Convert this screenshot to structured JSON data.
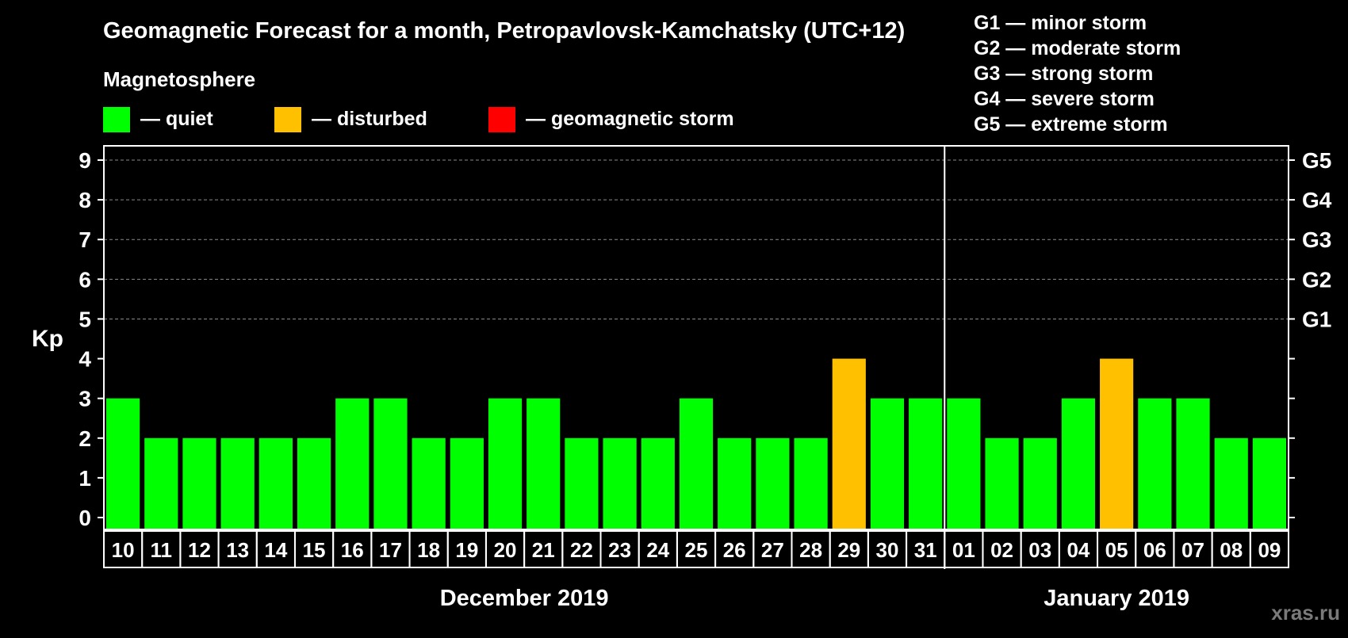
{
  "chart_data": {
    "type": "bar",
    "title": "Geomagnetic Forecast for a month, Petropavlovsk-Kamchatsky (UTC+12)",
    "subtitle": "Magnetosphere",
    "ylabel": "Kp",
    "ylim": [
      0,
      9
    ],
    "y_ticks": [
      "0",
      "1",
      "2",
      "3",
      "4",
      "5",
      "6",
      "7",
      "8",
      "9"
    ],
    "storm_scale": [
      {
        "level": "G1",
        "kp": 5
      },
      {
        "level": "G2",
        "kp": 6
      },
      {
        "level": "G3",
        "kp": 7
      },
      {
        "level": "G4",
        "kp": 8
      },
      {
        "level": "G5",
        "kp": 9
      }
    ],
    "legend": [
      {
        "label": "— quiet",
        "color": "#00ff00"
      },
      {
        "label": "— disturbed",
        "color": "#ffc000"
      },
      {
        "label": "— geomagnetic storm",
        "color": "#ff0000"
      }
    ],
    "storm_legend": [
      "G1 — minor storm",
      "G2 — moderate storm",
      "G3 — strong storm",
      "G4 — severe storm",
      "G5 — extreme storm"
    ],
    "months": [
      {
        "label": "December 2019",
        "days": 22
      },
      {
        "label": "January 2019",
        "days": 9
      }
    ],
    "categories": [
      "10",
      "11",
      "12",
      "13",
      "14",
      "15",
      "16",
      "17",
      "18",
      "19",
      "20",
      "21",
      "22",
      "23",
      "24",
      "25",
      "26",
      "27",
      "28",
      "29",
      "30",
      "31",
      "01",
      "02",
      "03",
      "04",
      "05",
      "06",
      "07",
      "08",
      "09"
    ],
    "values": [
      3,
      2,
      2,
      2,
      2,
      2,
      3,
      3,
      2,
      2,
      3,
      3,
      2,
      2,
      2,
      3,
      2,
      2,
      2,
      4,
      3,
      3,
      3,
      2,
      2,
      3,
      4,
      3,
      3,
      2,
      2
    ],
    "colors": {
      "quiet": "#00ff00",
      "disturbed": "#ffc000",
      "storm": "#ff0000",
      "grid": "#8a8a8a"
    },
    "grid": true,
    "watermark": "xras.ru"
  }
}
